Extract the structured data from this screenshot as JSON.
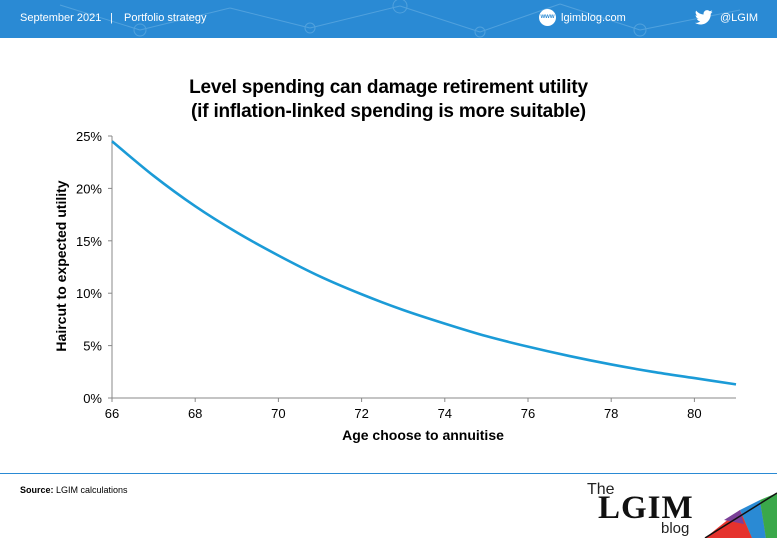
{
  "header": {
    "date": "September 2021",
    "separator": "|",
    "section": "Portfolio strategy",
    "site_badge": "www",
    "site": "lgimblog.com",
    "handle": "@LGIM"
  },
  "chart_data": {
    "type": "line",
    "title_line1": "Level spending can damage retirement utility",
    "title_line2": "(if inflation-linked spending is more suitable)",
    "xlabel": "Age choose to annuitise",
    "ylabel": "Haircut to expected utility",
    "xlim": [
      66,
      81
    ],
    "ylim": [
      0,
      25
    ],
    "x_ticks": [
      "66",
      "68",
      "70",
      "72",
      "74",
      "76",
      "78",
      "80"
    ],
    "y_ticks": [
      "0%",
      "5%",
      "10%",
      "15%",
      "20%",
      "25%"
    ],
    "grid": false,
    "legend": "none",
    "series": [
      {
        "color": "#1b9bd7",
        "x": [
          66,
          67,
          68,
          69,
          70,
          71,
          72,
          73,
          74,
          75,
          76,
          77,
          78,
          79,
          80,
          81
        ],
        "y": [
          24.5,
          21.2,
          18.3,
          15.8,
          13.6,
          11.6,
          9.9,
          8.4,
          7.1,
          5.9,
          4.9,
          4.0,
          3.2,
          2.5,
          1.9,
          1.3
        ]
      }
    ]
  },
  "footer": {
    "source_label": "Source:",
    "source_text": "LGIM calculations",
    "logo_the": "The",
    "logo_name": "LGIM",
    "logo_blog": "blog"
  }
}
